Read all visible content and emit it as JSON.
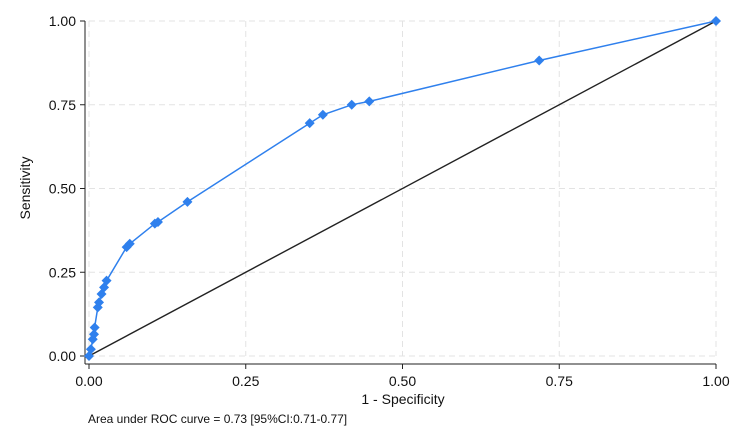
{
  "chart_data": {
    "type": "line",
    "title": "",
    "xlabel": "1 - Specificity",
    "ylabel": "Sensitivity",
    "xlim": [
      0,
      1
    ],
    "ylim": [
      0,
      1
    ],
    "x_ticks": [
      "0.00",
      "0.25",
      "0.50",
      "0.75",
      "1.00"
    ],
    "y_ticks": [
      "0.00",
      "0.25",
      "0.50",
      "0.75",
      "1.00"
    ],
    "grid": true,
    "note": "Area under ROC curve = 0.73 [95%CI:0.71-0.77]",
    "series": [
      {
        "name": "",
        "color": "#2f80ed",
        "marker": "diamond",
        "points": [
          [
            0.0,
            0.0
          ],
          [
            0.003,
            0.02
          ],
          [
            0.006,
            0.05
          ],
          [
            0.008,
            0.065
          ],
          [
            0.009,
            0.085
          ],
          [
            0.014,
            0.145
          ],
          [
            0.016,
            0.16
          ],
          [
            0.02,
            0.185
          ],
          [
            0.024,
            0.205
          ],
          [
            0.028,
            0.225
          ],
          [
            0.06,
            0.325
          ],
          [
            0.065,
            0.335
          ],
          [
            0.105,
            0.395
          ],
          [
            0.11,
            0.4
          ],
          [
            0.157,
            0.46
          ],
          [
            0.352,
            0.695
          ],
          [
            0.373,
            0.72
          ],
          [
            0.419,
            0.75
          ],
          [
            0.447,
            0.76
          ],
          [
            0.718,
            0.882
          ],
          [
            1.0,
            1.0
          ]
        ]
      }
    ],
    "reference_line": {
      "from": [
        0,
        0
      ],
      "to": [
        1,
        1
      ],
      "color": "#222222"
    }
  }
}
